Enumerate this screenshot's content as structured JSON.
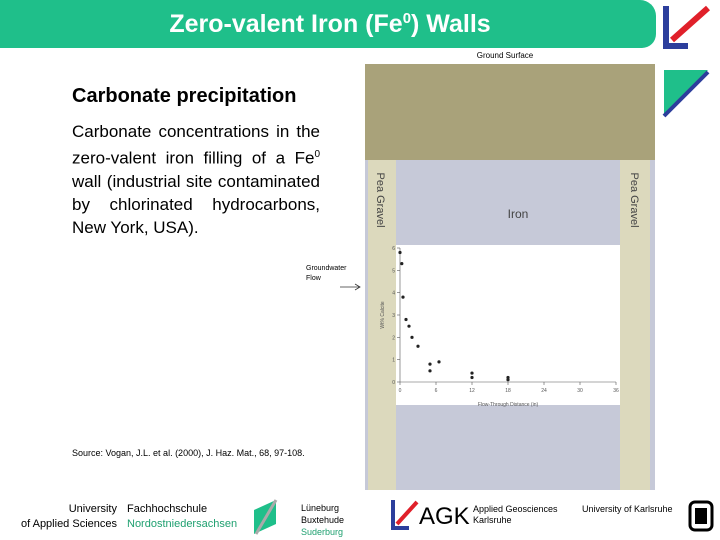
{
  "header": {
    "title_parts": [
      "Zero-valent Iron (Fe",
      "0",
      ") Walls"
    ]
  },
  "content": {
    "heading": "Carbonate precipitation",
    "body_parts": [
      "Carbonate concentrations in the zero-valent iron filling of a Fe",
      "0",
      " wall (industrial site contaminated by chlorinated hydrocarbons, New York, USA)."
    ],
    "source": "Source: Vogan, J.L. et al. (2000), J. Haz. Mat., 68, 97-108."
  },
  "figure": {
    "ground_surface": "Ground Surface",
    "pea_gravel_left": "Pea Gravel",
    "pea_gravel_right": "Pea Gravel",
    "iron": "Iron",
    "flow_label": [
      "Groundwater",
      "Flow"
    ],
    "chart_data": {
      "type": "scatter",
      "xlabel": "Flow-Through Distance (in)",
      "ylabel": "Wt% Calcite",
      "x": [
        0,
        0.3,
        0.5,
        1,
        1.5,
        2,
        3,
        5,
        5,
        6.5,
        12,
        12,
        18,
        18
      ],
      "values": [
        5.8,
        5.3,
        3.8,
        2.8,
        2.5,
        2.0,
        1.6,
        0.8,
        0.5,
        0.9,
        0.4,
        0.2,
        0.1,
        0.2
      ],
      "xlim": [
        0,
        36
      ],
      "xticks": [
        0,
        6,
        12,
        18,
        24,
        30,
        36
      ],
      "ylim": [
        0,
        6
      ],
      "yticks": [
        0,
        1,
        2,
        3,
        4,
        5,
        6
      ],
      "color": "#222"
    }
  },
  "footer": {
    "univ_lines": [
      "University",
      "of Applied Sciences"
    ],
    "fh_lines": [
      "Fachhochschule",
      "Nordostniedersachsen"
    ],
    "towns": [
      "Lüneburg",
      "Buxtehude",
      "Suderburg"
    ],
    "agk": "AGK",
    "agk_lines": [
      "Applied Geosciences",
      "Karlsruhe"
    ],
    "karlsruhe": "University of Karlsruhe"
  }
}
